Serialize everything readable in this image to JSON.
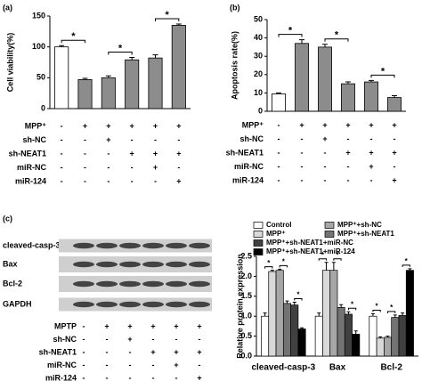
{
  "chart_data": [
    {
      "type": "bar",
      "panel": "(a)",
      "ylabel": "Cell viability(%)",
      "values": [
        100,
        47,
        50,
        79,
        82,
        135
      ],
      "errors": [
        2,
        2,
        3,
        4,
        5,
        2
      ],
      "colors": [
        "#ffffff",
        "#8c8c8c",
        "#8c8c8c",
        "#8c8c8c",
        "#8c8c8c",
        "#8c8c8c"
      ],
      "ylim": [
        0,
        150
      ],
      "yticks": [
        0,
        50,
        100,
        150
      ],
      "annotations": [
        "*",
        "*",
        "*"
      ],
      "treatment_table": {
        "rows": [
          "MPP⁺",
          "sh-NC",
          "sh-NEAT1",
          "miR-NC",
          "miR-124"
        ],
        "cells": [
          [
            "-",
            "+",
            "+",
            "+",
            "+",
            "+"
          ],
          [
            "-",
            "-",
            "+",
            "-",
            "-",
            "-"
          ],
          [
            "-",
            "-",
            "-",
            "+",
            "+",
            "+"
          ],
          [
            "-",
            "-",
            "-",
            "-",
            "+",
            "-"
          ],
          [
            "-",
            "-",
            "-",
            "-",
            "-",
            "+"
          ]
        ]
      }
    },
    {
      "type": "bar",
      "panel": "(b)",
      "ylabel": "Apoptosis rate(%)",
      "values": [
        9.5,
        37,
        35,
        15,
        16,
        7.5
      ],
      "errors": [
        0.5,
        2,
        1.5,
        1,
        0.8,
        1
      ],
      "colors": [
        "#ffffff",
        "#8c8c8c",
        "#8c8c8c",
        "#8c8c8c",
        "#8c8c8c",
        "#8c8c8c"
      ],
      "ylim": [
        0,
        50
      ],
      "yticks": [
        0,
        10,
        20,
        30,
        40,
        50
      ],
      "annotations": [
        "*",
        "*",
        "*"
      ],
      "treatment_table": {
        "rows": [
          "MPP⁺",
          "sh-NC",
          "sh-NEAT1",
          "miR-NC",
          "miR-124"
        ],
        "cells": [
          [
            "-",
            "+",
            "+",
            "+",
            "+",
            "+"
          ],
          [
            "-",
            "-",
            "+",
            "-",
            "-",
            "-"
          ],
          [
            "-",
            "-",
            "-",
            "+",
            "+",
            "+"
          ],
          [
            "-",
            "-",
            "-",
            "-",
            "+",
            "-"
          ],
          [
            "-",
            "-",
            "-",
            "-",
            "-",
            "+"
          ]
        ]
      }
    },
    {
      "type": "grouped-bar",
      "panel": "(c)",
      "ylabel": "Relative protein expression",
      "categories": [
        "cleaved-casp-3",
        "Bax",
        "Bcl-2"
      ],
      "series": [
        {
          "name": "Control",
          "color": "#ffffff",
          "values": [
            1.0,
            1.0,
            1.0
          ],
          "errors": [
            0.08,
            0.08,
            0.06
          ]
        },
        {
          "name": "MPP⁺",
          "color": "#d9d9d9",
          "values": [
            2.12,
            2.15,
            0.45
          ],
          "errors": [
            0.03,
            0.2,
            0.03
          ]
        },
        {
          "name": "MPP⁺+sh-NC",
          "color": "#a6a6a6",
          "values": [
            2.15,
            2.15,
            0.47
          ],
          "errors": [
            0.03,
            0.2,
            0.03
          ]
        },
        {
          "name": "MPP⁺+sh-NEAT1",
          "color": "#737373",
          "values": [
            1.32,
            1.22,
            0.97
          ],
          "errors": [
            0.06,
            0.07,
            0.06
          ]
        },
        {
          "name": "MPP⁺+sh-NEAT1+miR-NC",
          "color": "#404040",
          "values": [
            1.28,
            1.05,
            1.02
          ],
          "errors": [
            0.07,
            0.06,
            0.06
          ]
        },
        {
          "name": "MPP⁺+sh-NEAT1+miR-124",
          "color": "#000000",
          "values": [
            0.68,
            0.55,
            2.15
          ],
          "errors": [
            0.03,
            0.08,
            0.04
          ]
        }
      ],
      "ylim": [
        0,
        2.5
      ],
      "yticks": [
        {
          "value": 0,
          "label": "0.0"
        },
        0.5,
        {
          "value": 1,
          "label": "1.0"
        },
        1.5,
        {
          "value": 2,
          "label": "2.0"
        },
        2.5
      ],
      "annotations": [
        "*",
        "*",
        "*",
        "*",
        "*",
        "*",
        "*",
        "*",
        "*"
      ],
      "blot_labels": [
        "cleaved-casp-3",
        "Bax",
        "Bcl-2",
        "GAPDH"
      ],
      "treatment_table": {
        "rows": [
          "MPTP",
          "sh-NC",
          "sh-NEAT1",
          "miR-NC",
          "miR-124"
        ],
        "cells": [
          [
            "-",
            "+",
            "+",
            "+",
            "+",
            "+"
          ],
          [
            "-",
            "-",
            "+",
            "-",
            "-",
            "-"
          ],
          [
            "-",
            "-",
            "-",
            "+",
            "+",
            "+"
          ],
          [
            "-",
            "-",
            "-",
            "-",
            "+",
            "-"
          ],
          [
            "-",
            "-",
            "-",
            "-",
            "-",
            "+"
          ]
        ]
      }
    }
  ]
}
